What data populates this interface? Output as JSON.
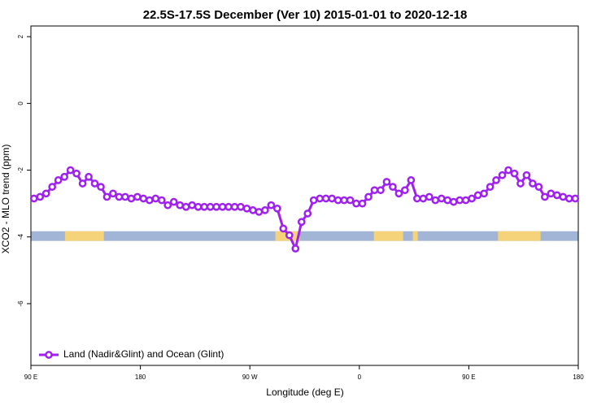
{
  "chart_data": {
    "type": "line",
    "title": "22.5S-17.5S December (Ver 10)   2015-01-01 to 2020-12-18",
    "x_label": "Longitude (deg E)",
    "y_label": "XCO2 - MLO trend (ppm)",
    "x": [
      92.5,
      97.5,
      102.5,
      107.5,
      112.5,
      117.5,
      122.5,
      127.5,
      132.5,
      137.5,
      142.5,
      147.5,
      152.5,
      157.5,
      162.5,
      167.5,
      172.5,
      177.5,
      182.5,
      187.5,
      192.5,
      197.5,
      202.5,
      207.5,
      212.5,
      217.5,
      222.5,
      227.5,
      232.5,
      237.5,
      242.5,
      247.5,
      252.5,
      257.5,
      262.5,
      267.5,
      272.5,
      277.5,
      282.5,
      287.5,
      292.5,
      297.5,
      302.5,
      307.5,
      312.5,
      317.5,
      322.5,
      327.5,
      332.5,
      337.5,
      342.5,
      347.5,
      352.5,
      357.5,
      362.5,
      367.5,
      372.5,
      377.5,
      382.5,
      387.5,
      392.5,
      397.5,
      402.5,
      407.5,
      412.5,
      417.5,
      422.5,
      427.5,
      432.5,
      437.5,
      442.5,
      447.5,
      452.5,
      457.5,
      462.5,
      467.5,
      472.5,
      477.5,
      482.5,
      487.5,
      492.5,
      497.5,
      502.5,
      507.5,
      512.5,
      517.5,
      522.5,
      527.5,
      532.5,
      537.5
    ],
    "series": [
      {
        "name": "Land (Nadir&Glint) and Ocean (Glint)",
        "color": "#a020f0",
        "values": [
          -2.85,
          -2.8,
          -2.7,
          -2.5,
          -2.3,
          -2.2,
          -2.0,
          -2.1,
          -2.4,
          -2.2,
          -2.4,
          -2.5,
          -2.8,
          -2.7,
          -2.8,
          -2.8,
          -2.85,
          -2.8,
          -2.85,
          -2.9,
          -2.85,
          -2.9,
          -3.05,
          -2.95,
          -3.05,
          -3.1,
          -3.05,
          -3.1,
          -3.1,
          -3.1,
          -3.1,
          -3.1,
          -3.1,
          -3.1,
          -3.1,
          -3.15,
          -3.2,
          -3.25,
          -3.2,
          -3.05,
          -3.15,
          -3.75,
          -3.95,
          -4.35,
          -3.55,
          -3.3,
          -2.9,
          -2.85,
          -2.85,
          -2.85,
          -2.9,
          -2.9,
          -2.9,
          -3.0,
          -3.0,
          -2.8,
          -2.6,
          -2.6,
          -2.35,
          -2.5,
          -2.7,
          -2.6,
          -2.3,
          -2.85,
          -2.85,
          -2.8,
          -2.9,
          -2.85,
          -2.9,
          -2.95,
          -2.9,
          -2.9,
          -2.85,
          -2.75,
          -2.7,
          -2.5,
          -2.3,
          -2.15,
          -2.0,
          -2.1,
          -2.4,
          -2.15,
          -2.4,
          -2.5,
          -2.8,
          -2.7,
          -2.75,
          -2.8,
          -2.85,
          -2.85
        ]
      }
    ],
    "surface_band": {
      "range": [
        -4.12,
        -3.83
      ],
      "ocean_color": "#a3b5d6",
      "land_color": "#f5d37b",
      "land": [
        [
          118,
          150
        ],
        [
          291,
          311
        ],
        [
          372,
          396
        ],
        [
          404,
          408
        ],
        [
          474,
          509
        ]
      ]
    },
    "xlim": [
      90,
      540
    ],
    "xticks": [
      {
        "value": 90,
        "label": "90 E"
      },
      180,
      {
        "value": 270,
        "label": "90 W"
      },
      {
        "value": 360,
        "label": "0"
      },
      {
        "value": 450,
        "label": "90 E"
      },
      {
        "value": 540,
        "label": "180"
      }
    ],
    "ylim": [
      -7.85,
      2.32
    ],
    "yticks": [
      2,
      0,
      -2,
      -4,
      -6
    ],
    "legend": "bottom-left"
  }
}
